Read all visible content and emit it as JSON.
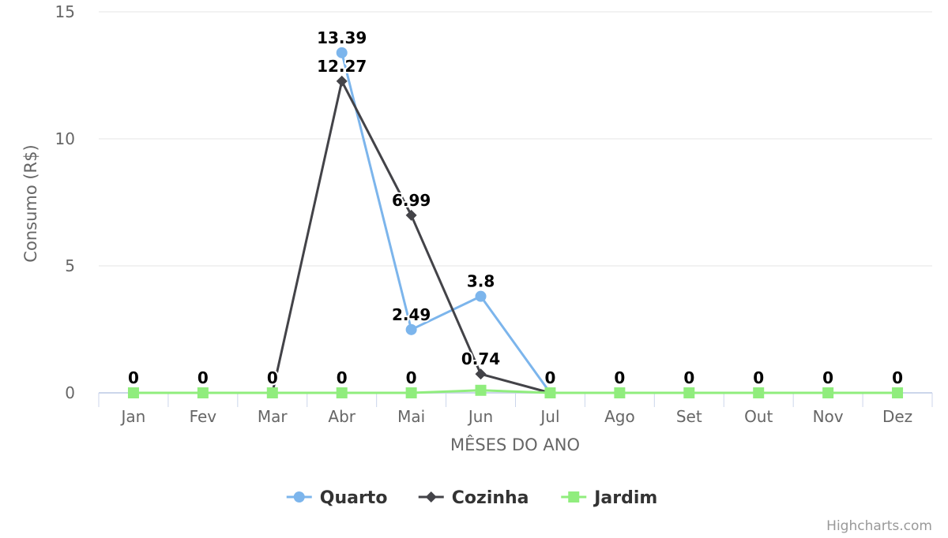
{
  "credits": "Highcharts.com",
  "chart_data": {
    "type": "line",
    "title": "",
    "xlabel": "MÊSES DO ANO",
    "ylabel": "Consumo (R$)",
    "categories": [
      "Jan",
      "Fev",
      "Mar",
      "Abr",
      "Mai",
      "Jun",
      "Jul",
      "Ago",
      "Set",
      "Out",
      "Nov",
      "Dez"
    ],
    "ylim": [
      0,
      15
    ],
    "yticks": [
      0,
      5,
      10,
      15
    ],
    "grid": true,
    "legend_position": "bottom-center",
    "series": [
      {
        "name": "Quarto",
        "color": "#7cb5ec",
        "marker": "circle",
        "values": [
          null,
          null,
          null,
          13.39,
          2.49,
          3.8,
          0,
          null,
          null,
          null,
          null,
          null
        ],
        "labels": [
          "",
          "",
          "",
          "13.39",
          "2.49",
          "3.8",
          "",
          "",
          "",
          "",
          "",
          ""
        ]
      },
      {
        "name": "Cozinha",
        "color": "#434348",
        "marker": "diamond",
        "values": [
          null,
          null,
          0,
          12.27,
          6.99,
          0.74,
          0,
          null,
          null,
          null,
          null,
          null
        ],
        "labels": [
          "",
          "",
          "0",
          "12.27",
          "6.99",
          "0.74",
          "",
          "",
          "",
          "",
          "",
          ""
        ]
      },
      {
        "name": "Jardim",
        "color": "#90ed7d",
        "marker": "square",
        "values": [
          0,
          0,
          0,
          0,
          0,
          0.1,
          0,
          0,
          0,
          0,
          0,
          0
        ],
        "labels": [
          "0",
          "0",
          "",
          "0",
          "0",
          "",
          "0",
          "0",
          "0",
          "0",
          "0",
          "0"
        ]
      }
    ]
  }
}
